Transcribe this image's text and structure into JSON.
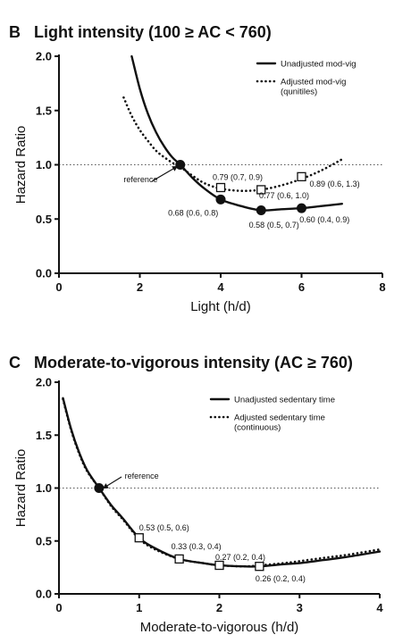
{
  "chart_data": [
    {
      "panel": "B",
      "type": "line",
      "title": "Light intensity (100 ≥ AC < 760)",
      "xlabel": "Light (h/d)",
      "ylabel": "Hazard Ratio",
      "xlim": [
        0,
        8
      ],
      "ylim": [
        0.0,
        2.0
      ],
      "xticks": [
        "0",
        "2",
        "4",
        "6",
        "8"
      ],
      "yticks": [
        "0.0",
        "0.5",
        "1.0",
        "1.5",
        "2.0"
      ],
      "reference_line": 1.0,
      "legend_position": "top-right",
      "series": [
        {
          "name": "Unadjusted mod-vig",
          "style": "solid",
          "x": [
            1.8,
            2.0,
            2.2,
            2.4,
            2.6,
            2.8,
            3.0,
            3.3,
            3.6,
            4.0,
            4.5,
            5.0,
            5.5,
            6.0,
            6.5,
            7.0
          ],
          "y": [
            2.0,
            1.7,
            1.47,
            1.3,
            1.17,
            1.07,
            1.0,
            0.88,
            0.78,
            0.68,
            0.62,
            0.58,
            0.59,
            0.6,
            0.62,
            0.64
          ]
        },
        {
          "name": "Adjusted mod-vig\n(qunitiles)",
          "style": "dotted",
          "x": [
            1.6,
            1.8,
            2.0,
            2.2,
            2.4,
            2.6,
            2.8,
            3.0,
            3.3,
            3.6,
            4.0,
            4.5,
            5.0,
            5.5,
            6.0,
            6.5,
            7.0
          ],
          "y": [
            1.62,
            1.45,
            1.32,
            1.22,
            1.13,
            1.07,
            1.02,
            0.98,
            0.9,
            0.83,
            0.78,
            0.76,
            0.77,
            0.81,
            0.87,
            0.95,
            1.05
          ]
        }
      ],
      "markers": [
        {
          "x": 3,
          "y": 1.0,
          "shape": "filled-circle"
        },
        {
          "x": 4,
          "y": 0.68,
          "shape": "filled-circle"
        },
        {
          "x": 5,
          "y": 0.58,
          "shape": "filled-circle"
        },
        {
          "x": 6,
          "y": 0.6,
          "shape": "filled-circle"
        },
        {
          "x": 4,
          "y": 0.79,
          "shape": "open-square"
        },
        {
          "x": 5,
          "y": 0.77,
          "shape": "open-square"
        },
        {
          "x": 6,
          "y": 0.89,
          "shape": "open-square"
        }
      ],
      "annotations": [
        {
          "text": "0.79 (0.7, 0.9)",
          "x": 3.8,
          "y": 0.86
        },
        {
          "text": "0.77 (0.6, 1.0)",
          "x": 4.95,
          "y": 0.69
        },
        {
          "text": "0.89 (0.6, 1.3)",
          "x": 6.2,
          "y": 0.8
        },
        {
          "text": "0.68 (0.6, 0.8)",
          "x": 2.7,
          "y": 0.53
        },
        {
          "text": "0.58 (0.5, 0.7)",
          "x": 4.7,
          "y": 0.42
        },
        {
          "text": "0.60 (0.4, 0.9)",
          "x": 5.95,
          "y": 0.47
        },
        {
          "text": "reference",
          "x": 1.6,
          "y": 0.84
        }
      ]
    },
    {
      "panel": "C",
      "type": "line",
      "title": "Moderate-to-vigorous intensity (AC ≥ 760)",
      "xlabel": "Moderate-to-vigorous (h/d)",
      "ylabel": "Hazard Ratio",
      "xlim": [
        0,
        4
      ],
      "ylim": [
        0.0,
        2.0
      ],
      "xticks": [
        "0",
        "1",
        "2",
        "3",
        "4"
      ],
      "yticks": [
        "0.0",
        "0.5",
        "1.0",
        "1.5",
        "2.0"
      ],
      "reference_line": 1.0,
      "legend_position": "top-right",
      "series": [
        {
          "name": "Unadjusted sedentary time",
          "style": "solid",
          "x": [
            0.05,
            0.15,
            0.25,
            0.35,
            0.5,
            0.65,
            0.8,
            1.0,
            1.2,
            1.5,
            1.8,
            2.0,
            2.3,
            2.5,
            2.8,
            3.0,
            3.3,
            3.6,
            4.0
          ],
          "y": [
            1.85,
            1.56,
            1.34,
            1.17,
            1.0,
            0.84,
            0.71,
            0.53,
            0.43,
            0.33,
            0.29,
            0.27,
            0.26,
            0.26,
            0.28,
            0.29,
            0.32,
            0.35,
            0.4
          ]
        },
        {
          "name": "Adjusted sedentary time\n(continuous)",
          "style": "dotted",
          "x": [
            0.05,
            0.15,
            0.25,
            0.35,
            0.5,
            0.65,
            0.8,
            1.0,
            1.2,
            1.5,
            1.8,
            2.0,
            2.3,
            2.5,
            2.8,
            3.0,
            3.3,
            3.6,
            4.0
          ],
          "y": [
            1.84,
            1.55,
            1.33,
            1.16,
            1.0,
            0.83,
            0.7,
            0.52,
            0.42,
            0.33,
            0.29,
            0.27,
            0.26,
            0.27,
            0.29,
            0.31,
            0.34,
            0.37,
            0.42
          ]
        }
      ],
      "markers": [
        {
          "x": 0.5,
          "y": 1.0,
          "shape": "filled-circle"
        },
        {
          "x": 1.0,
          "y": 0.53,
          "shape": "open-square"
        },
        {
          "x": 1.5,
          "y": 0.33,
          "shape": "open-square"
        },
        {
          "x": 2.0,
          "y": 0.27,
          "shape": "open-square"
        },
        {
          "x": 2.5,
          "y": 0.26,
          "shape": "open-square"
        }
      ],
      "annotations": [
        {
          "text": "0.53 (0.5, 0.6)",
          "x": 1.0,
          "y": 0.6
        },
        {
          "text": "0.33 (0.3, 0.4)",
          "x": 1.4,
          "y": 0.42
        },
        {
          "text": "0.27 (0.2, 0.4)",
          "x": 1.95,
          "y": 0.32
        },
        {
          "text": "0.26 (0.2, 0.4)",
          "x": 2.45,
          "y": 0.12
        },
        {
          "text": "reference",
          "x": 0.82,
          "y": 1.09
        }
      ]
    }
  ]
}
